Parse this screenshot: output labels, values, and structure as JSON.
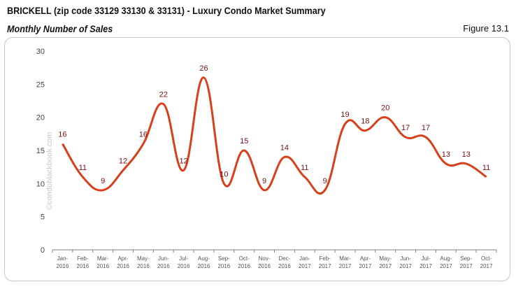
{
  "header": {
    "title": "BRICKELL (zip code 33129 33130 & 33131) - Luxury Condo Market Summary",
    "subtitle": "Monthly Number of Sales",
    "figure": "Figure 13.1"
  },
  "watermark": "©condoblackbook.com",
  "chart_data": {
    "type": "line",
    "categories": [
      [
        "Jan-",
        "2016"
      ],
      [
        "Feb-",
        "2016"
      ],
      [
        "Mar-",
        "2016"
      ],
      [
        "Apr-",
        "2016"
      ],
      [
        "May-",
        "2016"
      ],
      [
        "Jun-",
        "2016"
      ],
      [
        "Jul-",
        "2016"
      ],
      [
        "Aug-",
        "2016"
      ],
      [
        "Sep-",
        "2016"
      ],
      [
        "Oct-",
        "2016"
      ],
      [
        "Nov-",
        "2016"
      ],
      [
        "Dec-",
        "2016"
      ],
      [
        "Jan-",
        "2017"
      ],
      [
        "Feb-",
        "2017"
      ],
      [
        "Mar-",
        "2017"
      ],
      [
        "Apr-",
        "2017"
      ],
      [
        "May-",
        "2017"
      ],
      [
        "Jun-",
        "2017"
      ],
      [
        "Jul-",
        "2017"
      ],
      [
        "Aug-",
        "2017"
      ],
      [
        "Sep-",
        "2017"
      ],
      [
        "Oct-",
        "2017"
      ]
    ],
    "values": [
      16,
      11,
      9,
      12,
      16,
      22,
      12,
      26,
      10,
      15,
      9,
      14,
      11,
      9,
      19,
      18,
      20,
      17,
      17,
      13,
      13,
      11
    ],
    "ylim": [
      0,
      30
    ],
    "yticks": [
      0,
      5,
      10,
      15,
      20,
      25,
      30
    ],
    "smooth": true,
    "line_color": "#d9401a",
    "label_color": "#7a1010",
    "grid": false
  }
}
